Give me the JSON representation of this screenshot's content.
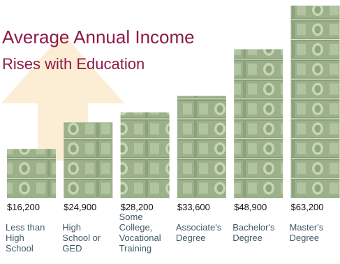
{
  "header": {
    "title": "Average Annual Income",
    "subtitle": "Rises with Education"
  },
  "colors": {
    "title": "#8e1b48",
    "arrow": "#fbeed4",
    "bill": "#9cb18a",
    "bill_edge": "#7e9770",
    "category_text": "#3f5a66"
  },
  "chart_data": {
    "type": "bar",
    "title": "Average Annual Income Rises with Education",
    "categories": [
      "Less than High School",
      "High School or GED",
      "Some College, Vocational Training",
      "Associate's Degree",
      "Bachelor's Degree",
      "Master's Degree"
    ],
    "values": [
      16200,
      24900,
      28200,
      33600,
      48900,
      63200
    ],
    "value_labels": [
      "$16,200",
      "$24,900",
      "$28,200",
      "$33,600",
      "$48,900",
      "$63,200"
    ],
    "category_lines": [
      [
        "Less than",
        "High",
        "School"
      ],
      [
        "High",
        "School or",
        "GED"
      ],
      [
        "Some",
        "College,",
        "Vocational",
        "Training"
      ],
      [
        "Associate's",
        "Degree"
      ],
      [
        "Bachelor's",
        "Degree"
      ],
      [
        "Master's",
        "Degree"
      ]
    ],
    "xlabel": "",
    "ylabel": "",
    "grid": false,
    "legend": "none"
  }
}
